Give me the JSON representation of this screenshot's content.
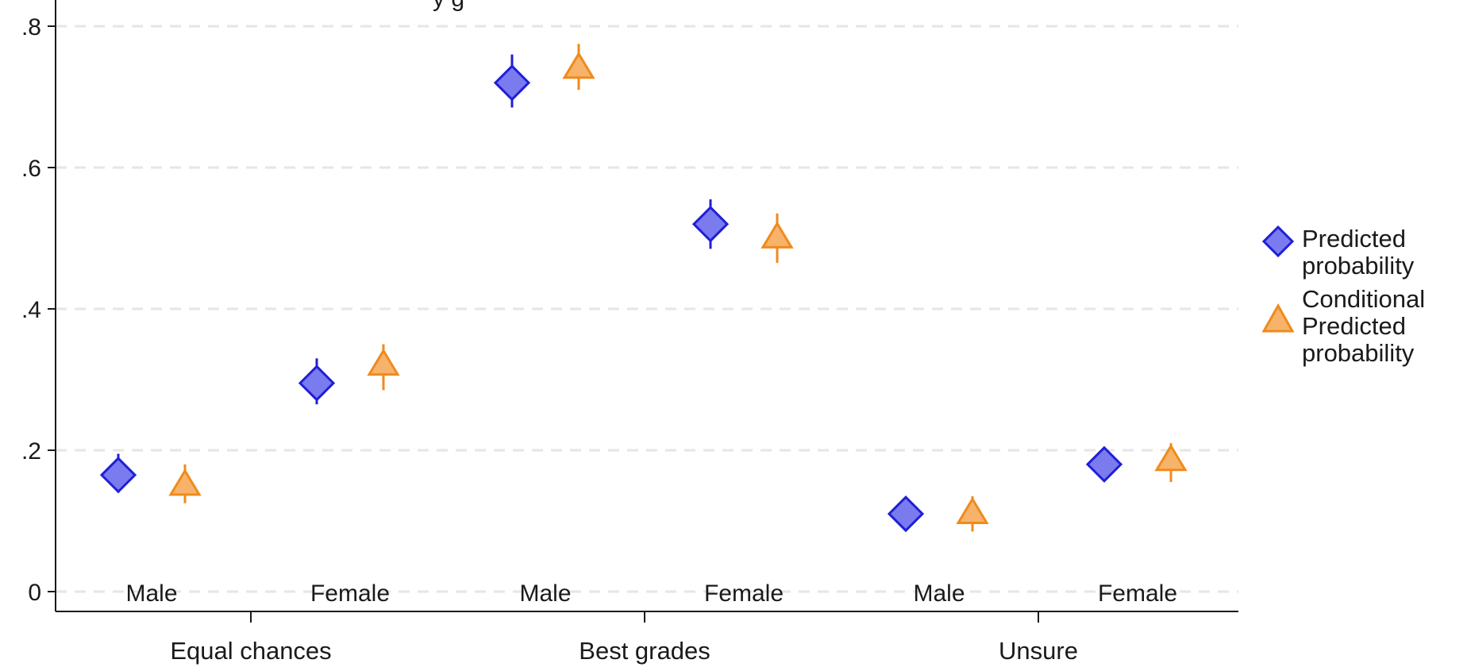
{
  "chart_data": {
    "type": "scatter",
    "title": "",
    "title_fragment": "y g",
    "xlabel": "",
    "ylabel": "",
    "ylim": [
      0,
      0.8
    ],
    "yticks": [
      0,
      0.2,
      0.4,
      0.6,
      0.8
    ],
    "ytick_labels": [
      "0",
      ".2",
      ".4",
      ".6",
      ".8"
    ],
    "grid": true,
    "legend_position": "right",
    "groups": [
      "Equal chances",
      "Best grades",
      "Unsure"
    ],
    "subgroups": [
      "Male",
      "Female"
    ],
    "series": [
      {
        "name": "Predicted probability",
        "marker": "diamond",
        "color": "#7b7bf0",
        "edge_color": "#1f1fd6",
        "values": [
          0.165,
          0.295,
          0.72,
          0.52,
          0.11,
          0.18
        ],
        "ci_low": [
          0.14,
          0.265,
          0.685,
          0.485,
          0.095,
          0.16
        ],
        "ci_high": [
          0.195,
          0.33,
          0.76,
          0.555,
          0.13,
          0.205
        ]
      },
      {
        "name": "Conditional Predicted probability",
        "marker": "triangle",
        "color": "#f7b36a",
        "edge_color": "#f08a1c",
        "values": [
          0.15,
          0.32,
          0.74,
          0.5,
          0.11,
          0.185
        ],
        "ci_low": [
          0.125,
          0.285,
          0.71,
          0.465,
          0.085,
          0.155
        ],
        "ci_high": [
          0.18,
          0.35,
          0.775,
          0.535,
          0.135,
          0.21
        ]
      }
    ]
  },
  "legend": {
    "items": [
      {
        "label_line1": "Predicted",
        "label_line2": "probability",
        "label_line3": ""
      },
      {
        "label_line1": "Conditional",
        "label_line2": "Predicted",
        "label_line3": "probability"
      }
    ]
  }
}
